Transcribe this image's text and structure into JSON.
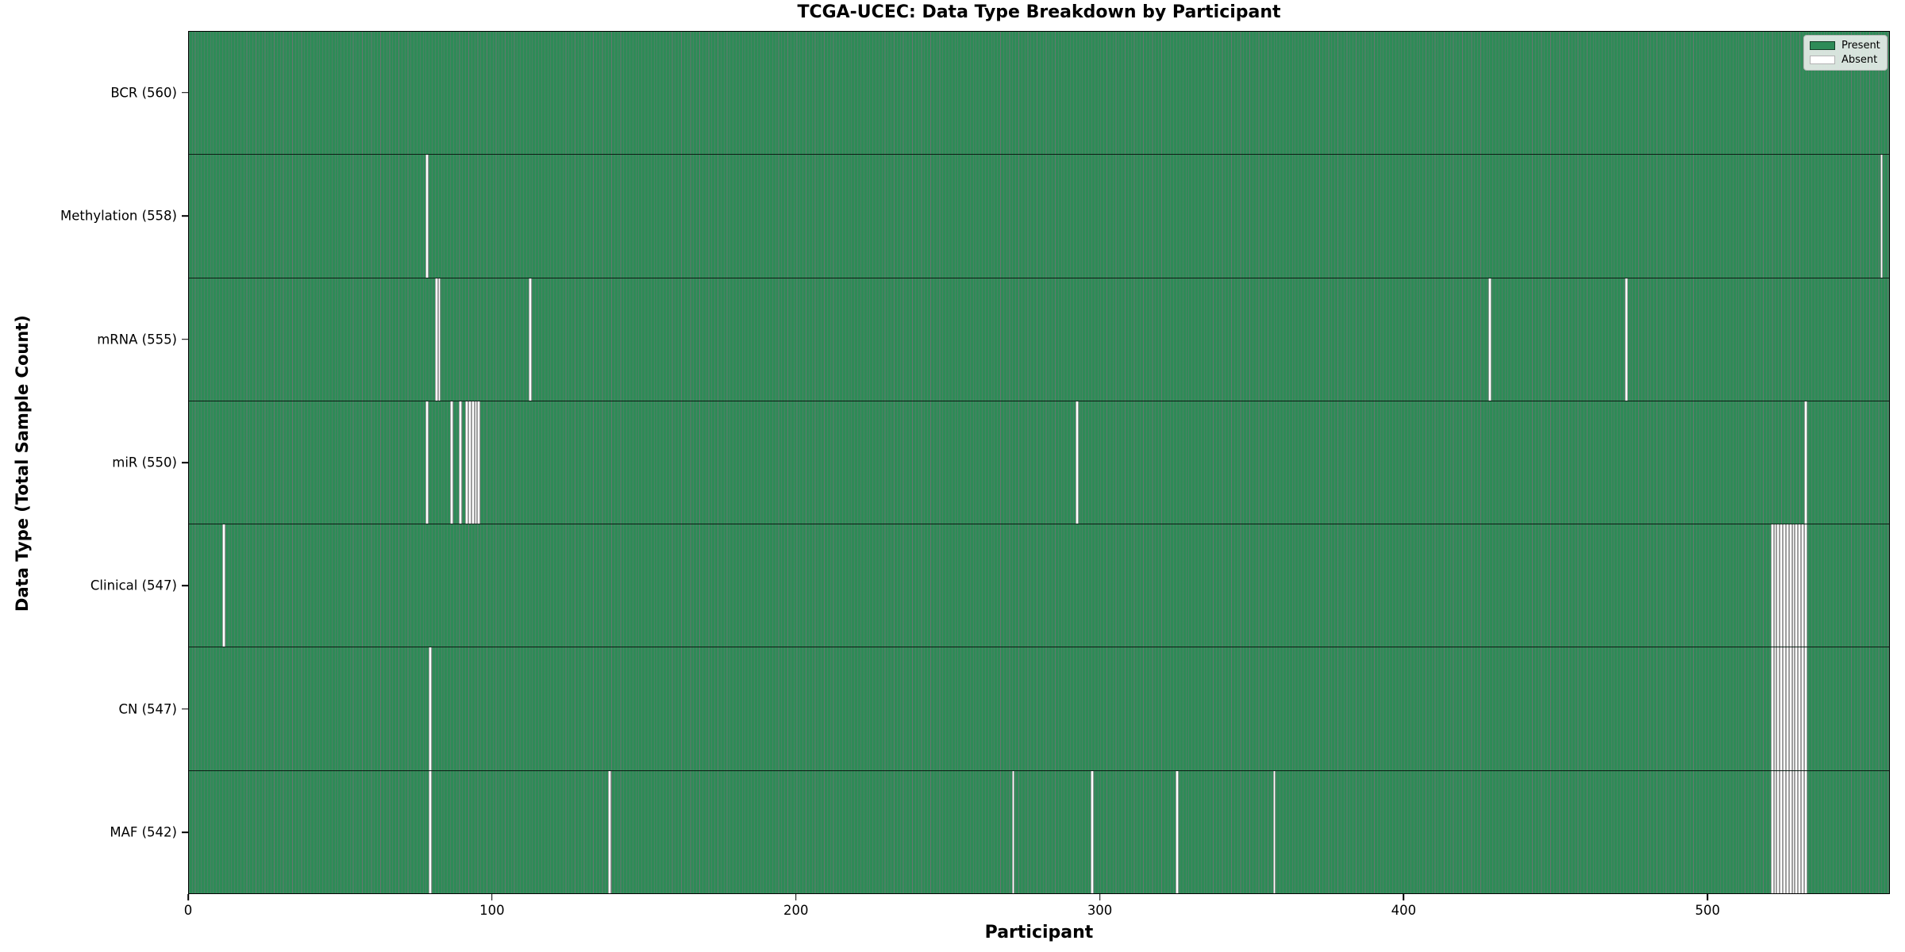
{
  "title": "TCGA-UCEC: Data Type Breakdown by Participant",
  "axes": {
    "xlabel": "Participant",
    "ylabel": "Data Type (Total Sample Count)"
  },
  "legend": {
    "present_label": "Present",
    "absent_label": "Absent"
  },
  "colors": {
    "present": "#2e8b57",
    "absent": "#ffffff",
    "bar_edge": "rgba(0,0,0,0.5)",
    "background": "#ffffff"
  },
  "chart_data": {
    "type": "heatmap",
    "title": "TCGA-UCEC: Data Type Breakdown by Participant",
    "xlabel": "Participant",
    "ylabel": "Data Type (Total Sample Count)",
    "x_range": [
      0,
      560
    ],
    "x_ticks": [
      0,
      100,
      200,
      300,
      400,
      500
    ],
    "n_participants": 560,
    "grid": false,
    "legend_position": "upper right",
    "legend_entries": [
      "Present",
      "Absent"
    ],
    "cell_semantics": "green = data type present for participant, white = absent",
    "rows": [
      {
        "name": "BCR",
        "label": "BCR (560)",
        "total": 560,
        "missing_participants": []
      },
      {
        "name": "Methylation",
        "label": "Methylation (558)",
        "total": 558,
        "missing_participants": [
          78,
          557
        ]
      },
      {
        "name": "mRNA",
        "label": "mRNA (555)",
        "total": 555,
        "missing_participants": [
          81,
          82,
          112,
          428,
          473
        ]
      },
      {
        "name": "miR",
        "label": "miR (550)",
        "total": 550,
        "missing_participants": [
          78,
          86,
          89,
          91,
          92,
          93,
          94,
          95,
          292,
          532
        ]
      },
      {
        "name": "Clinical",
        "label": "Clinical (547)",
        "total": 547,
        "missing_participants": [
          11,
          521,
          522,
          523,
          524,
          525,
          526,
          527,
          528,
          529,
          530,
          531,
          532
        ]
      },
      {
        "name": "CN",
        "label": "CN (547)",
        "total": 547,
        "missing_participants": [
          79,
          521,
          522,
          523,
          524,
          525,
          526,
          527,
          528,
          529,
          530,
          531,
          532
        ]
      },
      {
        "name": "MAF",
        "label": "MAF (542)",
        "total": 542,
        "missing_participants": [
          79,
          138,
          271,
          297,
          325,
          357,
          521,
          522,
          523,
          524,
          525,
          526,
          527,
          528,
          529,
          530,
          531,
          532
        ]
      }
    ]
  }
}
